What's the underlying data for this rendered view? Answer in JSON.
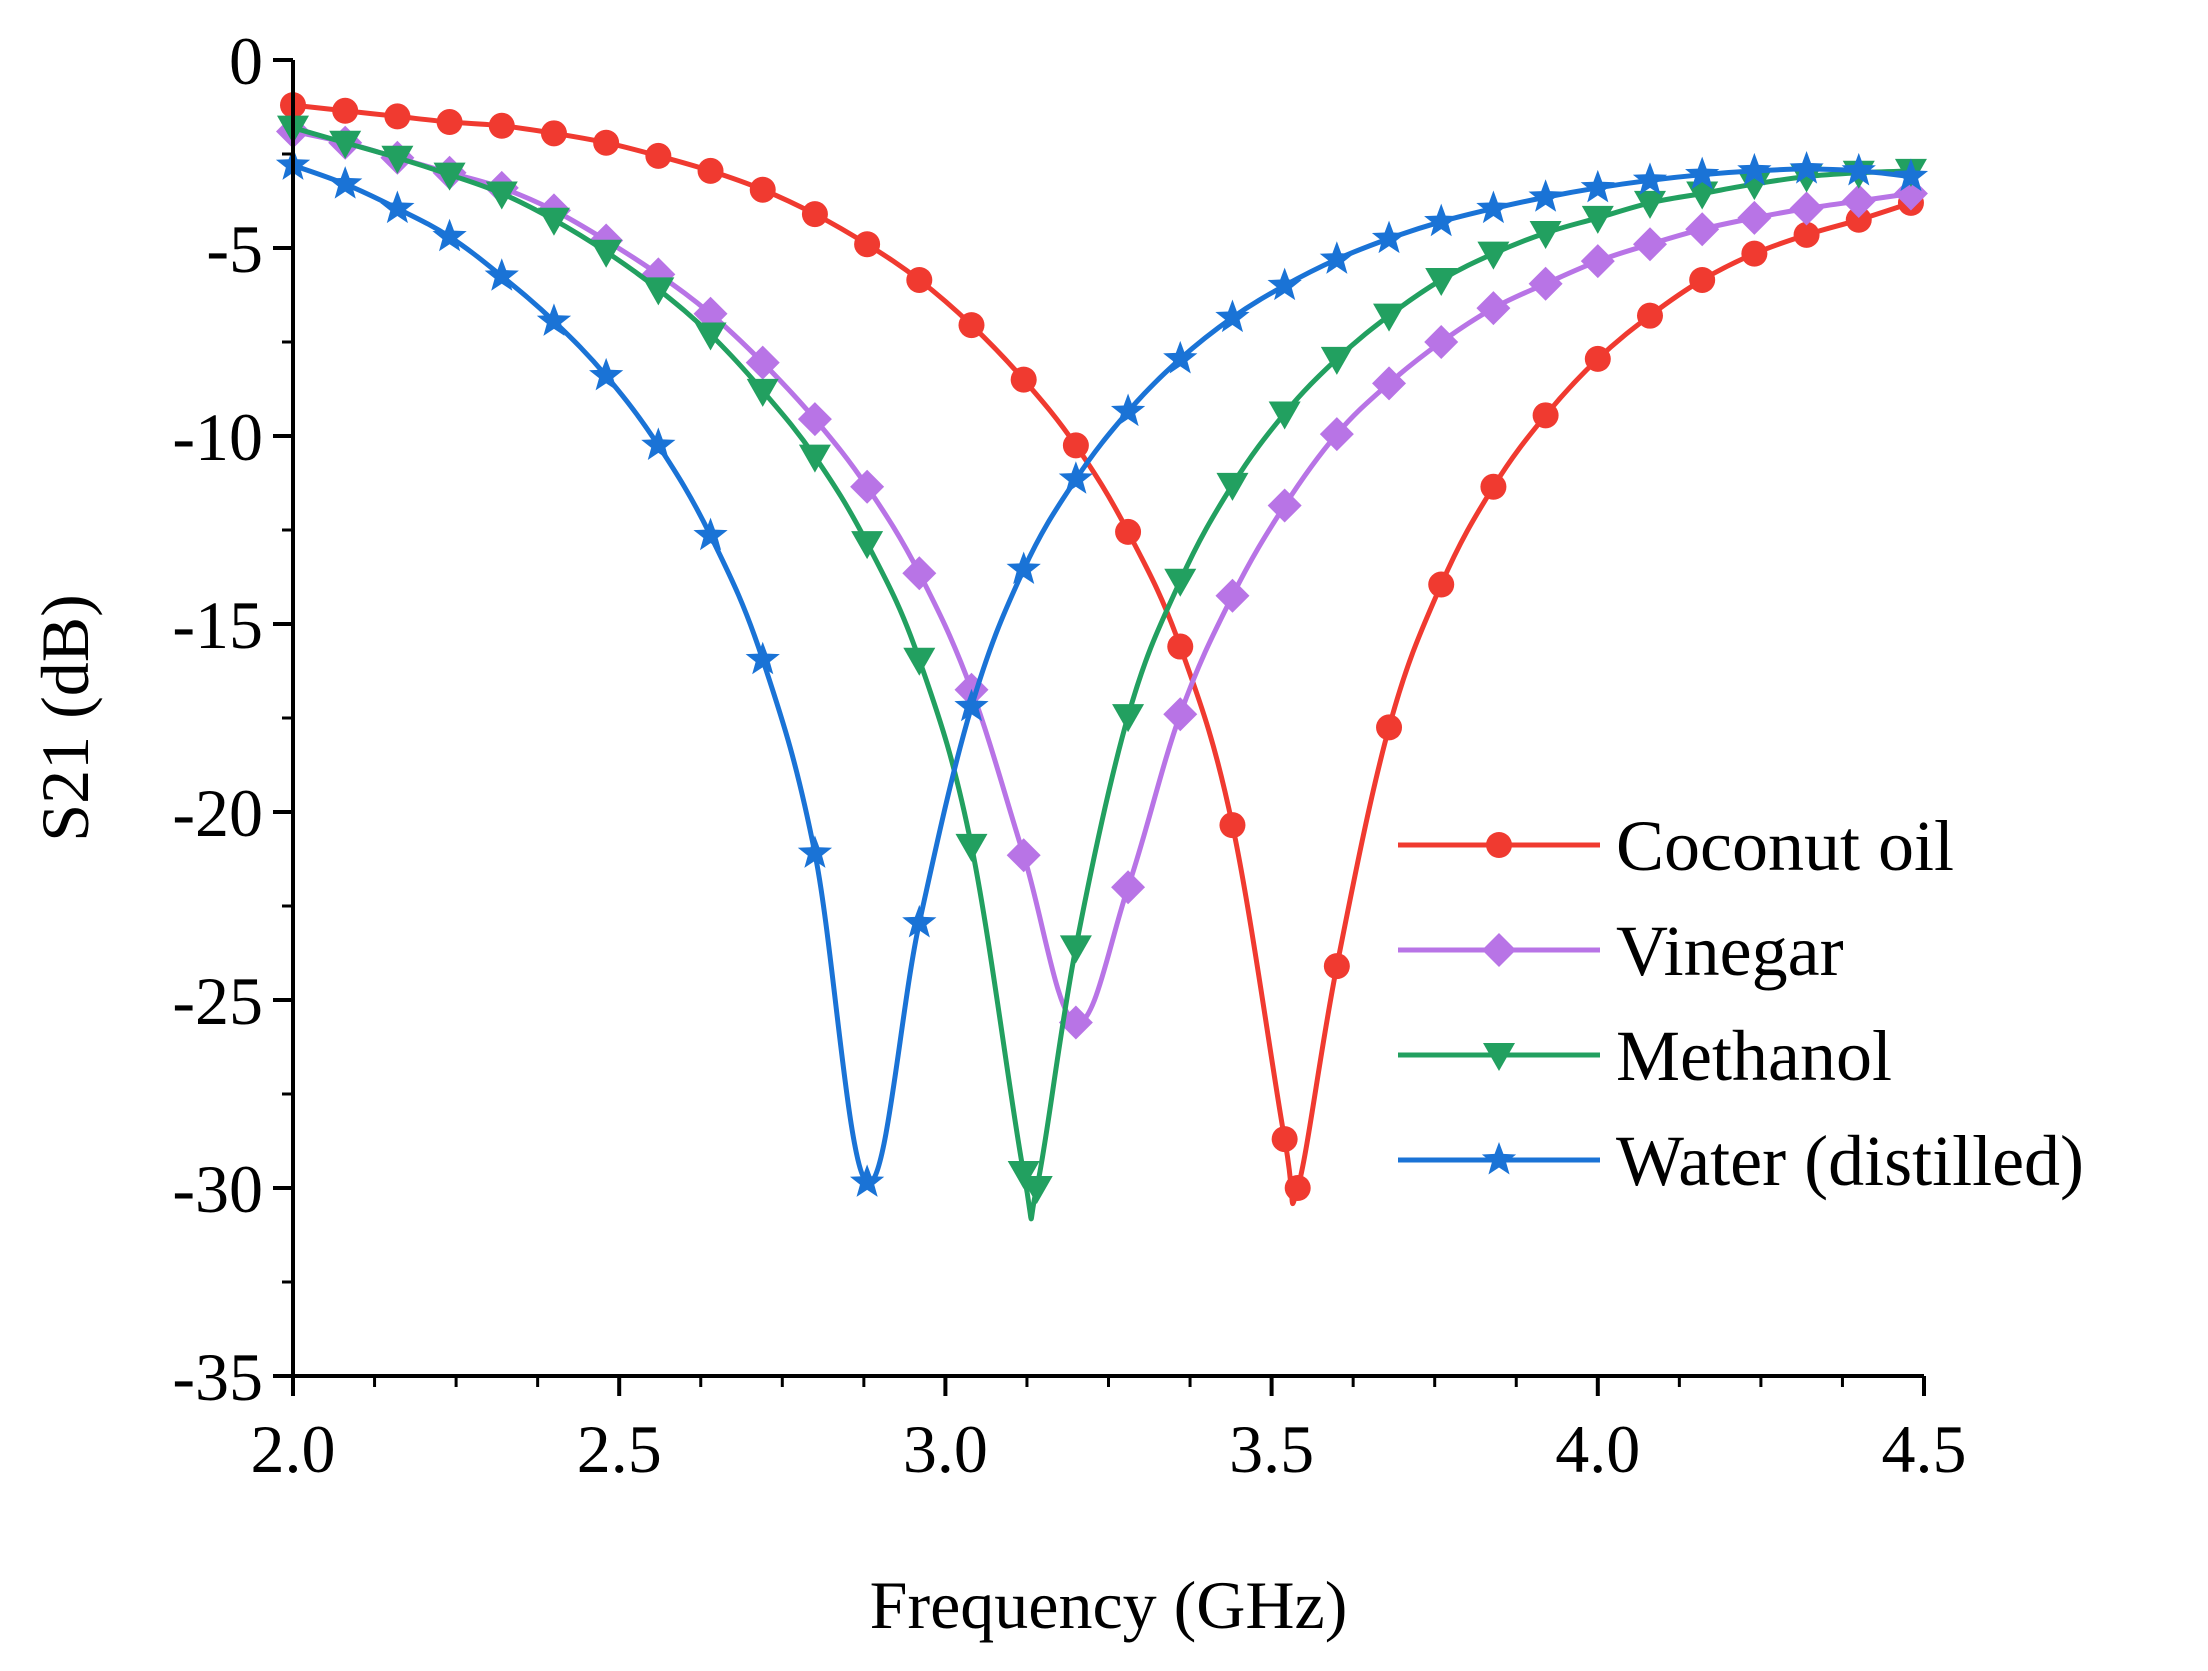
{
  "chart_data": {
    "type": "line",
    "title": "",
    "xlabel": "Frequency (GHz)",
    "ylabel": "S21 (dB)",
    "xlim": [
      2.0,
      4.5
    ],
    "ylim": [
      -35,
      0
    ],
    "xticks": [
      2.0,
      2.5,
      3.0,
      3.5,
      4.0,
      4.5
    ],
    "xtick_labels": [
      "2.0",
      "2.5",
      "3.0",
      "3.5",
      "4.0",
      "4.5"
    ],
    "yticks": [
      0,
      -5,
      -10,
      -15,
      -20,
      -25,
      -30,
      -35
    ],
    "ytick_labels": [
      "0",
      "-5",
      "-10",
      "-15",
      "-20",
      "-25",
      "-30",
      "-35"
    ],
    "grid": false,
    "legend_position": "lower-right",
    "series": [
      {
        "name": "Coconut oil",
        "color": "#f03a30",
        "marker": "circle",
        "points": [
          [
            2.0,
            -1.2
          ],
          [
            2.08,
            -1.35
          ],
          [
            2.16,
            -1.5
          ],
          [
            2.24,
            -1.65
          ],
          [
            2.32,
            -1.75
          ],
          [
            2.4,
            -1.95
          ],
          [
            2.48,
            -2.2
          ],
          [
            2.56,
            -2.55
          ],
          [
            2.64,
            -2.95
          ],
          [
            2.72,
            -3.45
          ],
          [
            2.8,
            -4.1
          ],
          [
            2.88,
            -4.9
          ],
          [
            2.96,
            -5.85
          ],
          [
            3.04,
            -7.05
          ],
          [
            3.12,
            -8.5
          ],
          [
            3.2,
            -10.25
          ],
          [
            3.28,
            -12.55
          ],
          [
            3.36,
            -15.6
          ],
          [
            3.44,
            -20.35
          ],
          [
            3.52,
            -28.7
          ],
          [
            3.54,
            -30.0
          ],
          [
            3.6,
            -24.1
          ],
          [
            3.68,
            -17.75
          ],
          [
            3.76,
            -13.95
          ],
          [
            3.84,
            -11.35
          ],
          [
            3.92,
            -9.45
          ],
          [
            4.0,
            -7.95
          ],
          [
            4.08,
            -6.8
          ],
          [
            4.16,
            -5.85
          ],
          [
            4.24,
            -5.15
          ],
          [
            4.32,
            -4.65
          ],
          [
            4.4,
            -4.25
          ],
          [
            4.48,
            -3.8
          ]
        ]
      },
      {
        "name": "Vinegar",
        "color": "#b874e6",
        "marker": "diamond",
        "points": [
          [
            2.0,
            -1.9
          ],
          [
            2.08,
            -2.2
          ],
          [
            2.16,
            -2.6
          ],
          [
            2.24,
            -3.0
          ],
          [
            2.32,
            -3.4
          ],
          [
            2.4,
            -4.0
          ],
          [
            2.48,
            -4.8
          ],
          [
            2.56,
            -5.7
          ],
          [
            2.64,
            -6.75
          ],
          [
            2.72,
            -8.05
          ],
          [
            2.8,
            -9.55
          ],
          [
            2.88,
            -11.35
          ],
          [
            2.96,
            -13.65
          ],
          [
            3.04,
            -16.75
          ],
          [
            3.12,
            -21.15
          ],
          [
            3.2,
            -25.6
          ],
          [
            3.28,
            -22.0
          ],
          [
            3.36,
            -17.4
          ],
          [
            3.44,
            -14.25
          ],
          [
            3.52,
            -11.85
          ],
          [
            3.6,
            -9.95
          ],
          [
            3.68,
            -8.6
          ],
          [
            3.76,
            -7.5
          ],
          [
            3.84,
            -6.6
          ],
          [
            3.92,
            -5.95
          ],
          [
            4.0,
            -5.35
          ],
          [
            4.08,
            -4.9
          ],
          [
            4.16,
            -4.5
          ],
          [
            4.24,
            -4.2
          ],
          [
            4.32,
            -3.95
          ],
          [
            4.4,
            -3.75
          ],
          [
            4.48,
            -3.55
          ]
        ]
      },
      {
        "name": "Methanol",
        "color": "#22a060",
        "marker": "triangle-down",
        "points": [
          [
            2.0,
            -1.8
          ],
          [
            2.08,
            -2.2
          ],
          [
            2.16,
            -2.6
          ],
          [
            2.24,
            -3.05
          ],
          [
            2.32,
            -3.55
          ],
          [
            2.4,
            -4.25
          ],
          [
            2.48,
            -5.1
          ],
          [
            2.56,
            -6.1
          ],
          [
            2.64,
            -7.3
          ],
          [
            2.72,
            -8.8
          ],
          [
            2.8,
            -10.55
          ],
          [
            2.88,
            -12.85
          ],
          [
            2.96,
            -15.95
          ],
          [
            3.04,
            -20.9
          ],
          [
            3.12,
            -29.6
          ],
          [
            3.14,
            -30.0
          ],
          [
            3.2,
            -23.6
          ],
          [
            3.28,
            -17.45
          ],
          [
            3.36,
            -13.85
          ],
          [
            3.44,
            -11.3
          ],
          [
            3.52,
            -9.4
          ],
          [
            3.6,
            -7.95
          ],
          [
            3.68,
            -6.8
          ],
          [
            3.76,
            -5.85
          ],
          [
            3.84,
            -5.15
          ],
          [
            3.92,
            -4.6
          ],
          [
            4.0,
            -4.2
          ],
          [
            4.08,
            -3.8
          ],
          [
            4.16,
            -3.55
          ],
          [
            4.24,
            -3.3
          ],
          [
            4.32,
            -3.1
          ],
          [
            4.4,
            -3.0
          ],
          [
            4.48,
            -2.95
          ]
        ]
      },
      {
        "name": "Water (distilled)",
        "color": "#1a73d6",
        "marker": "star",
        "points": [
          [
            2.0,
            -2.8
          ],
          [
            2.08,
            -3.3
          ],
          [
            2.16,
            -3.95
          ],
          [
            2.24,
            -4.7
          ],
          [
            2.32,
            -5.75
          ],
          [
            2.4,
            -6.95
          ],
          [
            2.48,
            -8.4
          ],
          [
            2.56,
            -10.25
          ],
          [
            2.64,
            -12.65
          ],
          [
            2.72,
            -15.95
          ],
          [
            2.8,
            -21.1
          ],
          [
            2.88,
            -29.85
          ],
          [
            2.96,
            -22.95
          ],
          [
            3.04,
            -17.2
          ],
          [
            3.12,
            -13.55
          ],
          [
            3.2,
            -11.15
          ],
          [
            3.28,
            -9.35
          ],
          [
            3.36,
            -7.95
          ],
          [
            3.44,
            -6.85
          ],
          [
            3.52,
            -6.0
          ],
          [
            3.6,
            -5.3
          ],
          [
            3.68,
            -4.75
          ],
          [
            3.76,
            -4.3
          ],
          [
            3.84,
            -3.95
          ],
          [
            3.92,
            -3.65
          ],
          [
            4.0,
            -3.4
          ],
          [
            4.08,
            -3.2
          ],
          [
            4.16,
            -3.05
          ],
          [
            4.24,
            -2.95
          ],
          [
            4.32,
            -2.9
          ],
          [
            4.4,
            -2.95
          ],
          [
            4.48,
            -3.1
          ]
        ]
      }
    ]
  }
}
